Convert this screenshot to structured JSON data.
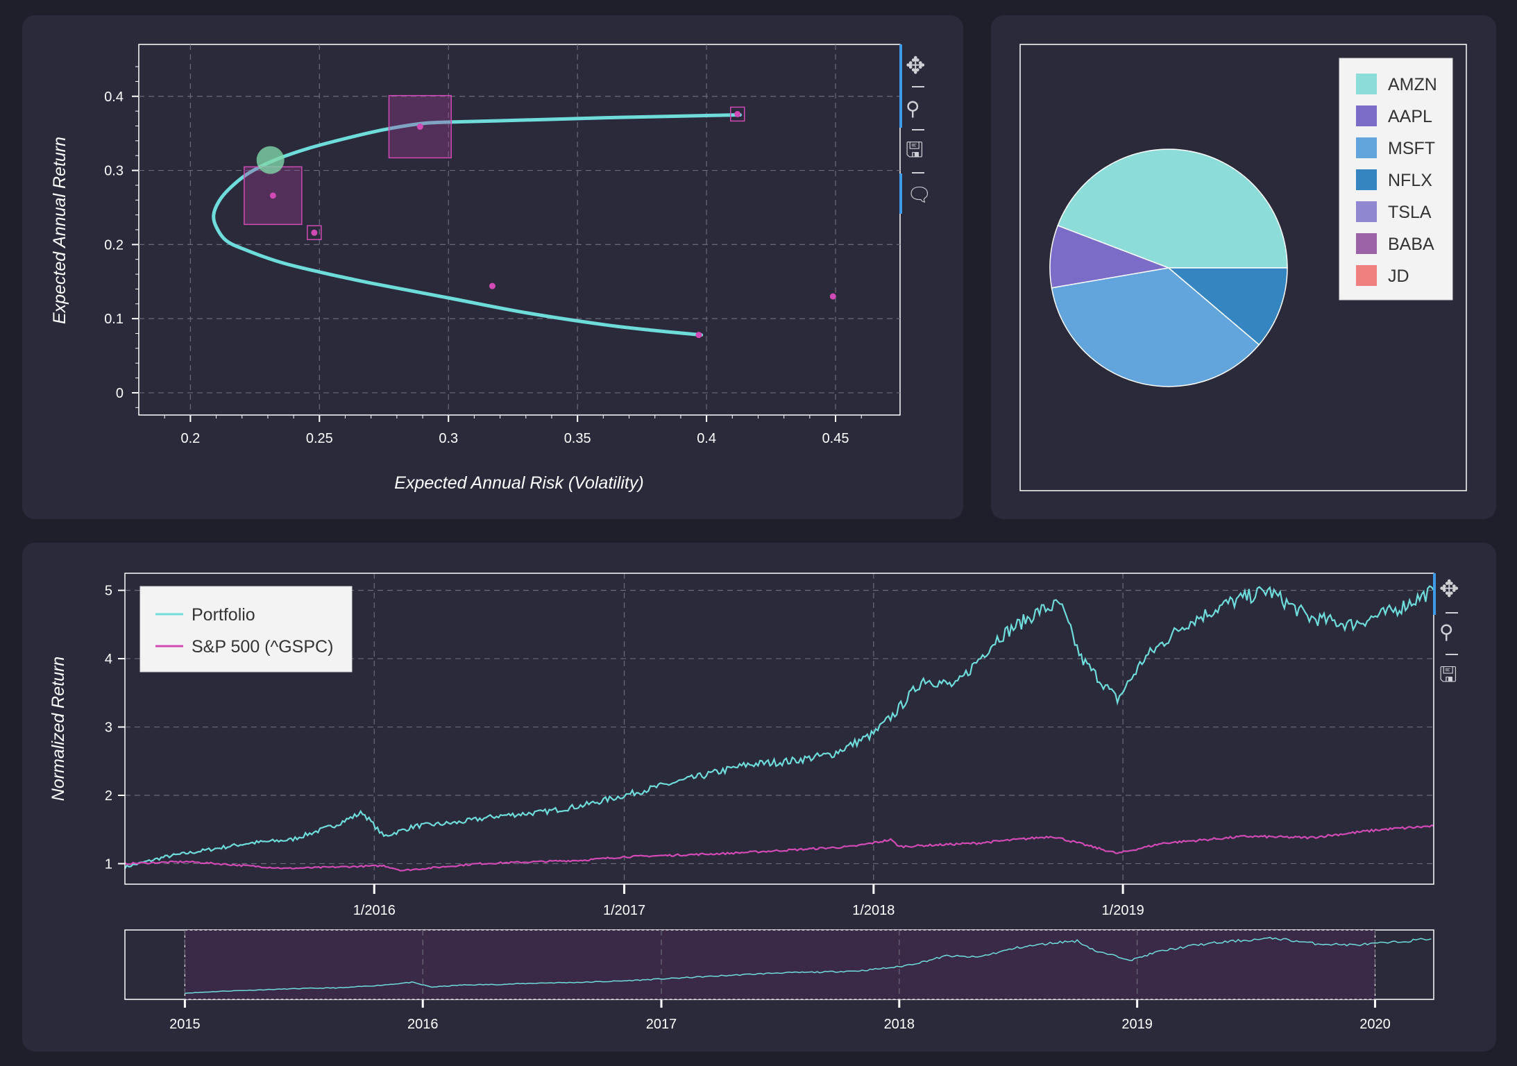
{
  "toolbar": {
    "pan_icon": "move-icon",
    "zoom_icon": "box-zoom-icon",
    "save_icon": "save-icon",
    "hover_icon": "hover-tooltip-icon"
  },
  "colors": {
    "background": "#1f1f2b",
    "panel": "#2a2a3a",
    "frontier": "#6fdcdc",
    "stock": "#d14ab5",
    "optimal_marker": "#7fd6a8",
    "portfolio_line": "#6fdcdc",
    "sp500_line": "#d14ab5",
    "range_fill": "#3a2a48",
    "toolbar_active": "#3d9be9"
  },
  "chart_data": [
    {
      "id": "efficient-frontier",
      "type": "scatter",
      "xlabel": "Expected Annual Risk (Volatility)",
      "ylabel": "Expected Annual Return",
      "xlim": [
        0.18,
        0.475
      ],
      "ylim": [
        -0.03,
        0.47
      ],
      "x_ticks": [
        "0.2",
        "0.25",
        "0.3",
        "0.35",
        "0.4",
        "0.45"
      ],
      "x_tick_values": [
        0.2,
        0.25,
        0.3,
        0.35,
        0.4,
        0.45
      ],
      "y_ticks": [
        "0",
        "0.1",
        "0.2",
        "0.3",
        "0.4"
      ],
      "y_tick_values": [
        0,
        0.1,
        0.2,
        0.3,
        0.4
      ],
      "grid": true,
      "frontier_curve": {
        "x": [
          0.413,
          0.36,
          0.32,
          0.298,
          0.289,
          0.275,
          0.26,
          0.245,
          0.232,
          0.222,
          0.215,
          0.211,
          0.209,
          0.21,
          0.214,
          0.222,
          0.235,
          0.25,
          0.27,
          0.3,
          0.33,
          0.36,
          0.38,
          0.398
        ],
        "y": [
          0.375,
          0.371,
          0.367,
          0.365,
          0.363,
          0.355,
          0.343,
          0.329,
          0.313,
          0.295,
          0.275,
          0.258,
          0.24,
          0.224,
          0.205,
          0.192,
          0.176,
          0.163,
          0.148,
          0.128,
          0.108,
          0.092,
          0.084,
          0.078
        ]
      },
      "stock_points": [
        {
          "x": 0.232,
          "y": 0.266,
          "weight": 1.0
        },
        {
          "x": 0.289,
          "y": 0.359,
          "weight": 1.15
        },
        {
          "x": 0.248,
          "y": 0.216,
          "weight": 0.25
        },
        {
          "x": 0.412,
          "y": 0.376,
          "weight": 0.3
        },
        {
          "x": 0.317,
          "y": 0.144,
          "weight": 0
        },
        {
          "x": 0.449,
          "y": 0.13,
          "weight": 0
        },
        {
          "x": 0.397,
          "y": 0.078,
          "weight": 0
        }
      ],
      "optimal_point": {
        "x": 0.231,
        "y": 0.314
      }
    },
    {
      "id": "allocation-pie",
      "type": "pie",
      "legend_position": "top-right",
      "slices": [
        {
          "label": "AMZN",
          "value": 44.2,
          "color": "#8cdcd9"
        },
        {
          "label": "AAPL",
          "value": 8.5,
          "color": "#7b6cc8"
        },
        {
          "label": "MSFT",
          "value": 36.1,
          "color": "#62a5dd"
        },
        {
          "label": "NFLX",
          "value": 11.2,
          "color": "#3586c0"
        },
        {
          "label": "TSLA",
          "value": 0,
          "color": "#8f88d0"
        },
        {
          "label": "BABA",
          "value": 0,
          "color": "#9b63a6"
        },
        {
          "label": "JD",
          "value": 0,
          "color": "#f08080"
        }
      ]
    },
    {
      "id": "normalized-return",
      "type": "line",
      "ylabel": "Normalized Return",
      "legend_position": "top-left",
      "ylim": [
        0.7,
        5.25
      ],
      "y_ticks": [
        "1",
        "2",
        "3",
        "4",
        "5"
      ],
      "y_tick_values": [
        1,
        2,
        3,
        4,
        5
      ],
      "x_start": "2015-01-01",
      "x_end": "2020-03-31",
      "main_window": [
        "2015-01-01",
        "2020-03-31"
      ],
      "x_ticks": [
        "1/2016",
        "1/2017",
        "1/2018",
        "1/2019"
      ],
      "x_tick_dates": [
        "2016-01-01",
        "2017-01-01",
        "2018-01-01",
        "2019-01-01"
      ],
      "grid": true,
      "series": [
        {
          "name": "Portfolio",
          "x": [
            "2015-01-01",
            "2015-03-01",
            "2015-05-01",
            "2015-07-01",
            "2015-09-01",
            "2015-11-01",
            "2015-12-15",
            "2016-01-15",
            "2016-03-01",
            "2016-05-01",
            "2016-07-01",
            "2016-09-01",
            "2016-11-01",
            "2017-01-01",
            "2017-03-01",
            "2017-05-01",
            "2017-07-01",
            "2017-09-01",
            "2017-11-01",
            "2018-01-01",
            "2018-02-01",
            "2018-03-15",
            "2018-05-01",
            "2018-07-01",
            "2018-09-01",
            "2018-10-01",
            "2018-11-01",
            "2018-12-24",
            "2019-02-01",
            "2019-04-01",
            "2019-06-01",
            "2019-08-01",
            "2019-10-01",
            "2019-12-01",
            "2020-02-01",
            "2020-03-31"
          ],
          "y": [
            0.95,
            1.1,
            1.2,
            1.3,
            1.35,
            1.55,
            1.75,
            1.4,
            1.55,
            1.6,
            1.7,
            1.75,
            1.85,
            2.0,
            2.15,
            2.3,
            2.45,
            2.5,
            2.6,
            2.9,
            3.2,
            3.7,
            3.6,
            4.3,
            4.7,
            4.8,
            4.0,
            3.4,
            4.0,
            4.5,
            4.8,
            5.0,
            4.6,
            4.5,
            4.7,
            5.0
          ]
        },
        {
          "name": "S&P 500 (^GSPC)",
          "x": [
            "2015-01-01",
            "2015-04-01",
            "2015-08-25",
            "2016-01-15",
            "2016-02-11",
            "2016-06-01",
            "2016-11-01",
            "2017-01-01",
            "2017-06-01",
            "2017-12-01",
            "2018-01-26",
            "2018-02-08",
            "2018-06-01",
            "2018-09-20",
            "2018-12-24",
            "2019-03-01",
            "2019-07-01",
            "2019-10-01",
            "2020-01-15",
            "2020-03-31"
          ],
          "y": [
            1.0,
            1.03,
            0.93,
            0.97,
            0.9,
            1.0,
            1.05,
            1.1,
            1.15,
            1.25,
            1.35,
            1.25,
            1.3,
            1.4,
            1.15,
            1.3,
            1.4,
            1.38,
            1.5,
            1.55
          ]
        }
      ]
    },
    {
      "id": "range-selector",
      "type": "line",
      "x_ticks": [
        "2015",
        "2016",
        "2017",
        "2018",
        "2019",
        "2020"
      ],
      "x_tick_dates": [
        "2015-01-01",
        "2016-01-01",
        "2017-01-01",
        "2018-01-01",
        "2019-01-01",
        "2020-01-01"
      ],
      "selected_range": [
        "2015-01-01",
        "2020-01-01"
      ],
      "xlim": [
        "2014-10-01",
        "2020-03-31"
      ]
    }
  ]
}
